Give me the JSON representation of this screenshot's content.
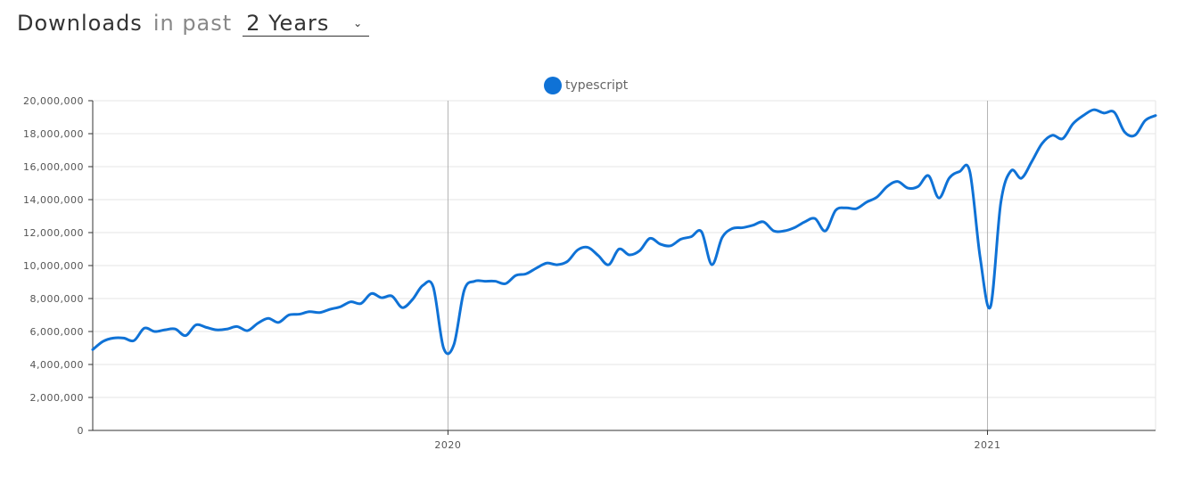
{
  "header": {
    "title": "Downloads",
    "subtitle": "in past",
    "range_value": "2 Years"
  },
  "icons": {
    "range_dropdown": "chevron-down-icon"
  },
  "colors": {
    "series": "#0f72d6",
    "grid": "#e6e6e6",
    "axis": "#333333",
    "year_marker": "#b3b3b3",
    "tick_text": "#555555"
  },
  "chart_data": {
    "type": "line",
    "title": "",
    "xlabel": "",
    "ylabel": "",
    "legend_position": "top-center",
    "grid": true,
    "ylim": [
      0,
      20000000
    ],
    "xlim": [
      "2019-05-05",
      "2021-04-25"
    ],
    "y_ticks": [
      "0",
      "2,000,000",
      "4,000,000",
      "6,000,000",
      "8,000,000",
      "10,000,000",
      "12,000,000",
      "14,000,000",
      "16,000,000",
      "18,000,000",
      "20,000,000"
    ],
    "x_ticks": [
      {
        "label": "2020",
        "date": "2020-01-01"
      },
      {
        "label": "2021",
        "date": "2021-01-01"
      }
    ],
    "series": [
      {
        "name": "typescript",
        "points": [
          [
            "2019-05-05",
            4900000
          ],
          [
            "2019-05-12",
            5400000
          ],
          [
            "2019-05-19",
            5600000
          ],
          [
            "2019-05-26",
            5600000
          ],
          [
            "2019-06-02",
            5450000
          ],
          [
            "2019-06-09",
            6200000
          ],
          [
            "2019-06-16",
            6000000
          ],
          [
            "2019-06-23",
            6100000
          ],
          [
            "2019-06-30",
            6150000
          ],
          [
            "2019-07-07",
            5750000
          ],
          [
            "2019-07-14",
            6400000
          ],
          [
            "2019-07-21",
            6250000
          ],
          [
            "2019-07-28",
            6100000
          ],
          [
            "2019-08-04",
            6150000
          ],
          [
            "2019-08-11",
            6300000
          ],
          [
            "2019-08-18",
            6050000
          ],
          [
            "2019-08-25",
            6500000
          ],
          [
            "2019-09-01",
            6800000
          ],
          [
            "2019-09-08",
            6550000
          ],
          [
            "2019-09-15",
            7000000
          ],
          [
            "2019-09-22",
            7050000
          ],
          [
            "2019-09-29",
            7200000
          ],
          [
            "2019-10-06",
            7150000
          ],
          [
            "2019-10-13",
            7350000
          ],
          [
            "2019-10-20",
            7500000
          ],
          [
            "2019-10-27",
            7800000
          ],
          [
            "2019-11-03",
            7700000
          ],
          [
            "2019-11-10",
            8300000
          ],
          [
            "2019-11-17",
            8050000
          ],
          [
            "2019-11-24",
            8150000
          ],
          [
            "2019-12-01",
            7450000
          ],
          [
            "2019-12-08",
            7950000
          ],
          [
            "2019-12-15",
            8800000
          ],
          [
            "2019-12-22",
            8700000
          ],
          [
            "2019-12-29",
            5000000
          ],
          [
            "2020-01-05",
            5200000
          ],
          [
            "2020-01-12",
            8500000
          ],
          [
            "2020-01-19",
            9050000
          ],
          [
            "2020-01-26",
            9050000
          ],
          [
            "2020-02-02",
            9050000
          ],
          [
            "2020-02-09",
            8900000
          ],
          [
            "2020-02-16",
            9400000
          ],
          [
            "2020-02-23",
            9500000
          ],
          [
            "2020-03-01",
            9850000
          ],
          [
            "2020-03-08",
            10150000
          ],
          [
            "2020-03-15",
            10050000
          ],
          [
            "2020-03-22",
            10250000
          ],
          [
            "2020-03-29",
            10950000
          ],
          [
            "2020-04-05",
            11100000
          ],
          [
            "2020-04-12",
            10600000
          ],
          [
            "2020-04-19",
            10050000
          ],
          [
            "2020-04-26",
            11000000
          ],
          [
            "2020-05-03",
            10650000
          ],
          [
            "2020-05-10",
            10900000
          ],
          [
            "2020-05-17",
            11650000
          ],
          [
            "2020-05-24",
            11300000
          ],
          [
            "2020-05-31",
            11200000
          ],
          [
            "2020-06-07",
            11600000
          ],
          [
            "2020-06-14",
            11750000
          ],
          [
            "2020-06-21",
            12050000
          ],
          [
            "2020-06-28",
            10050000
          ],
          [
            "2020-07-05",
            11700000
          ],
          [
            "2020-07-12",
            12250000
          ],
          [
            "2020-07-19",
            12300000
          ],
          [
            "2020-07-26",
            12450000
          ],
          [
            "2020-08-02",
            12650000
          ],
          [
            "2020-08-09",
            12100000
          ],
          [
            "2020-08-16",
            12100000
          ],
          [
            "2020-08-23",
            12300000
          ],
          [
            "2020-08-30",
            12650000
          ],
          [
            "2020-09-06",
            12850000
          ],
          [
            "2020-09-13",
            12100000
          ],
          [
            "2020-09-20",
            13350000
          ],
          [
            "2020-09-27",
            13500000
          ],
          [
            "2020-10-04",
            13450000
          ],
          [
            "2020-10-11",
            13850000
          ],
          [
            "2020-10-18",
            14150000
          ],
          [
            "2020-10-25",
            14800000
          ],
          [
            "2020-11-01",
            15100000
          ],
          [
            "2020-11-08",
            14700000
          ],
          [
            "2020-11-15",
            14800000
          ],
          [
            "2020-11-22",
            15450000
          ],
          [
            "2020-11-29",
            14100000
          ],
          [
            "2020-12-06",
            15300000
          ],
          [
            "2020-12-13",
            15700000
          ],
          [
            "2020-12-20",
            15700000
          ],
          [
            "2020-12-27",
            10500000
          ],
          [
            "2021-01-03",
            7500000
          ],
          [
            "2021-01-10",
            13800000
          ],
          [
            "2021-01-17",
            15750000
          ],
          [
            "2021-01-24",
            15300000
          ],
          [
            "2021-01-31",
            16300000
          ],
          [
            "2021-02-07",
            17400000
          ],
          [
            "2021-02-14",
            17900000
          ],
          [
            "2021-02-21",
            17700000
          ],
          [
            "2021-02-28",
            18600000
          ],
          [
            "2021-03-07",
            19100000
          ],
          [
            "2021-03-14",
            19450000
          ],
          [
            "2021-03-21",
            19250000
          ],
          [
            "2021-03-28",
            19300000
          ],
          [
            "2021-04-04",
            18100000
          ],
          [
            "2021-04-11",
            17900000
          ],
          [
            "2021-04-18",
            18800000
          ],
          [
            "2021-04-25",
            19100000
          ]
        ]
      }
    ]
  }
}
